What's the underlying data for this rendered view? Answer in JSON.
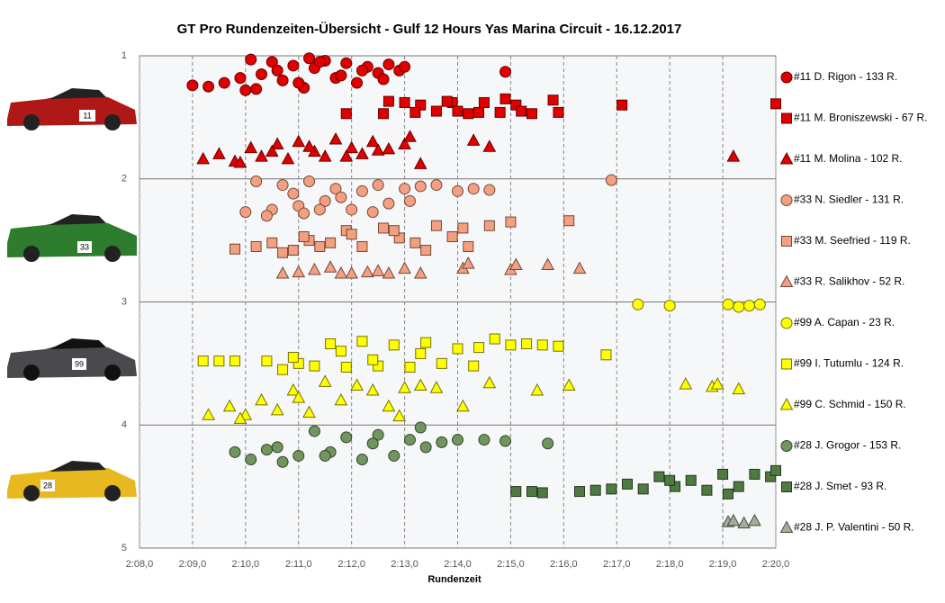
{
  "chart_data": {
    "type": "scatter",
    "title": "GT Pro Rundenzeiten-Übersicht  - Gulf 12 Hours Yas Marina  Circuit  - 16.12.2017",
    "x_label": "Rundenzeit",
    "xlim": [
      128,
      140
    ],
    "ylim": [
      1,
      5
    ],
    "y_inverted": true,
    "grid": true,
    "xticks": [
      {
        "value": 128,
        "label": "2:08,0"
      },
      {
        "value": 129,
        "label": "2:09,0"
      },
      {
        "value": 130,
        "label": "2:10,0"
      },
      {
        "value": 131,
        "label": "2:11,0"
      },
      {
        "value": 132,
        "label": "2:12,0"
      },
      {
        "value": 133,
        "label": "2:13,0"
      },
      {
        "value": 134,
        "label": "2:14,0"
      },
      {
        "value": 135,
        "label": "2:15,0"
      },
      {
        "value": 136,
        "label": "2:16,0"
      },
      {
        "value": 137,
        "label": "2:17,0"
      },
      {
        "value": 138,
        "label": "2:18,0"
      },
      {
        "value": 139,
        "label": "2:19,0"
      },
      {
        "value": 140,
        "label": "2:20,0"
      }
    ],
    "yticks": [
      1,
      2,
      3,
      4,
      5
    ],
    "series": [
      {
        "name": "#11 D. Rigon - 133 R.",
        "color": "#e00000",
        "marker": "circle",
        "x": [
          129.0,
          129.3,
          129.6,
          129.9,
          130.1,
          130.3,
          130.5,
          130.7,
          130.9,
          131.1,
          131.3,
          131.5,
          131.7,
          131.9,
          132.1,
          132.3,
          132.5,
          132.7,
          132.9,
          133.0,
          130.2,
          130.6,
          131.0,
          131.4,
          131.8,
          132.2,
          132.6,
          134.9,
          130.0,
          131.2
        ],
        "values": [
          1.24,
          1.25,
          1.22,
          1.18,
          1.03,
          1.15,
          1.05,
          1.2,
          1.08,
          1.26,
          1.1,
          1.04,
          1.18,
          1.06,
          1.22,
          1.09,
          1.14,
          1.07,
          1.12,
          1.09,
          1.27,
          1.12,
          1.22,
          1.05,
          1.16,
          1.12,
          1.19,
          1.13,
          1.28,
          1.02
        ]
      },
      {
        "name": "#11 M. Broniszewski - 67 R.",
        "color": "#e00000",
        "marker": "square",
        "x": [
          131.9,
          132.7,
          133.0,
          133.3,
          133.6,
          133.9,
          134.2,
          134.5,
          134.8,
          135.1,
          135.4,
          135.8,
          133.2,
          133.8,
          134.4,
          134.9,
          135.2,
          135.9,
          137.1,
          140.0,
          132.6,
          134.0
        ],
        "values": [
          1.47,
          1.37,
          1.38,
          1.4,
          1.45,
          1.38,
          1.47,
          1.38,
          1.46,
          1.4,
          1.47,
          1.36,
          1.46,
          1.37,
          1.46,
          1.35,
          1.45,
          1.46,
          1.4,
          1.39,
          1.47,
          1.45
        ]
      },
      {
        "name": "#11 M. Molina - 102 R.",
        "color": "#e00000",
        "marker": "triangle",
        "x": [
          129.2,
          129.5,
          129.8,
          130.1,
          130.3,
          130.6,
          130.8,
          131.0,
          131.3,
          131.5,
          131.7,
          132.0,
          132.2,
          132.4,
          132.7,
          133.0,
          133.3,
          129.9,
          130.5,
          131.2,
          131.9,
          132.5,
          134.3,
          134.6,
          139.2,
          133.1
        ],
        "values": [
          1.84,
          1.8,
          1.86,
          1.75,
          1.82,
          1.72,
          1.84,
          1.7,
          1.78,
          1.82,
          1.68,
          1.75,
          1.8,
          1.7,
          1.76,
          1.72,
          1.88,
          1.87,
          1.78,
          1.74,
          1.82,
          1.77,
          1.69,
          1.74,
          1.82,
          1.66
        ]
      },
      {
        "name": "#33 N. Siedler - 131 R.",
        "color": "#f4a080",
        "marker": "circle",
        "x": [
          130.0,
          130.2,
          130.5,
          130.7,
          131.0,
          131.2,
          131.5,
          131.7,
          132.0,
          132.2,
          132.5,
          132.7,
          133.0,
          133.3,
          133.6,
          134.0,
          134.3,
          134.6,
          136.9,
          130.4,
          131.1,
          131.8,
          132.4,
          133.1,
          130.9,
          131.4
        ],
        "values": [
          2.27,
          2.02,
          2.25,
          2.05,
          2.22,
          2.02,
          2.18,
          2.08,
          2.25,
          2.1,
          2.05,
          2.2,
          2.08,
          2.06,
          2.05,
          2.1,
          2.08,
          2.09,
          2.01,
          2.3,
          2.28,
          2.15,
          2.27,
          2.18,
          2.12,
          2.25
        ]
      },
      {
        "name": "#33 M. Seefried - 119 R.",
        "color": "#f4a080",
        "marker": "square",
        "x": [
          129.8,
          130.2,
          130.5,
          130.9,
          131.2,
          131.6,
          131.9,
          132.2,
          132.6,
          132.9,
          133.2,
          133.6,
          133.9,
          134.2,
          134.6,
          135.0,
          136.1,
          130.7,
          131.4,
          132.0,
          132.8,
          133.4,
          134.1,
          131.1
        ],
        "values": [
          2.57,
          2.55,
          2.52,
          2.58,
          2.5,
          2.52,
          2.42,
          2.55,
          2.4,
          2.48,
          2.52,
          2.38,
          2.47,
          2.55,
          2.38,
          2.35,
          2.34,
          2.6,
          2.55,
          2.45,
          2.42,
          2.58,
          2.4,
          2.47
        ]
      },
      {
        "name": "#33 R. Salikhov - 52 R.",
        "color": "#f4a080",
        "marker": "triangle",
        "x": [
          130.7,
          131.0,
          131.3,
          131.6,
          132.0,
          132.3,
          132.7,
          133.0,
          133.3,
          134.1,
          134.2,
          135.0,
          135.1,
          135.7,
          136.3,
          131.8,
          132.5
        ],
        "values": [
          2.77,
          2.76,
          2.74,
          2.72,
          2.77,
          2.76,
          2.77,
          2.73,
          2.77,
          2.73,
          2.69,
          2.74,
          2.7,
          2.7,
          2.73,
          2.77,
          2.75
        ]
      },
      {
        "name": "#99 A. Capan - 23 R.",
        "color": "#ffff00",
        "marker": "circle",
        "x": [
          137.4,
          138.0,
          139.1,
          139.3,
          139.5,
          139.7
        ],
        "values": [
          3.02,
          3.03,
          3.02,
          3.04,
          3.03,
          3.02
        ]
      },
      {
        "name": "#99 I. Tutumlu - 124 R.",
        "color": "#ffff00",
        "marker": "square",
        "x": [
          129.2,
          129.5,
          129.8,
          130.4,
          130.7,
          131.0,
          131.3,
          131.6,
          131.9,
          132.2,
          132.5,
          132.8,
          133.1,
          133.4,
          133.7,
          134.0,
          134.3,
          134.7,
          135.0,
          135.3,
          135.6,
          135.9,
          136.8,
          130.9,
          131.8,
          132.4,
          133.3,
          134.4
        ],
        "values": [
          3.48,
          3.48,
          3.48,
          3.48,
          3.55,
          3.5,
          3.52,
          3.34,
          3.53,
          3.32,
          3.52,
          3.35,
          3.53,
          3.33,
          3.5,
          3.38,
          3.52,
          3.3,
          3.35,
          3.34,
          3.35,
          3.36,
          3.43,
          3.45,
          3.4,
          3.47,
          3.42,
          3.37
        ]
      },
      {
        "name": "#99 C. Schmid - 150 R.",
        "color": "#ffff00",
        "marker": "triangle",
        "x": [
          129.3,
          129.7,
          130.0,
          130.3,
          130.6,
          130.9,
          131.2,
          131.5,
          131.8,
          132.1,
          132.4,
          132.7,
          133.0,
          133.3,
          133.6,
          134.1,
          134.6,
          135.5,
          136.1,
          138.3,
          138.8,
          138.9,
          139.3,
          129.9,
          131.0,
          132.9
        ],
        "values": [
          3.92,
          3.85,
          3.92,
          3.8,
          3.88,
          3.72,
          3.9,
          3.65,
          3.8,
          3.68,
          3.72,
          3.85,
          3.7,
          3.68,
          3.7,
          3.85,
          3.66,
          3.72,
          3.68,
          3.67,
          3.69,
          3.67,
          3.71,
          3.95,
          3.78,
          3.93
        ]
      },
      {
        "name": "#28 J. Grogor - 153 R.",
        "color": "#70955e",
        "marker": "circle",
        "x": [
          129.8,
          130.1,
          130.4,
          130.7,
          131.0,
          131.3,
          131.6,
          131.9,
          132.2,
          132.5,
          132.8,
          133.1,
          133.4,
          133.7,
          134.0,
          134.5,
          134.9,
          135.7,
          130.6,
          131.5,
          132.4,
          133.3
        ],
        "values": [
          4.22,
          4.28,
          4.2,
          4.3,
          4.25,
          4.05,
          4.22,
          4.1,
          4.28,
          4.08,
          4.25,
          4.12,
          4.18,
          4.14,
          4.12,
          4.12,
          4.13,
          4.15,
          4.18,
          4.25,
          4.15,
          4.02
        ]
      },
      {
        "name": "#28 J. Smet - 93 R.",
        "color": "#4f7a42",
        "marker": "square",
        "x": [
          135.1,
          135.4,
          135.6,
          136.3,
          136.6,
          136.9,
          137.2,
          137.5,
          137.8,
          138.1,
          138.4,
          138.7,
          139.0,
          139.3,
          139.6,
          139.9,
          140.0,
          138.0,
          139.1
        ],
        "values": [
          4.54,
          4.54,
          4.55,
          4.54,
          4.53,
          4.52,
          4.48,
          4.52,
          4.42,
          4.5,
          4.45,
          4.53,
          4.4,
          4.5,
          4.4,
          4.42,
          4.37,
          4.45,
          4.56
        ]
      },
      {
        "name": "#28 J. P. Valentini - 50 R.",
        "color": "#a3ad98",
        "marker": "triangle",
        "x": [
          139.1,
          139.2,
          139.4,
          139.6
        ],
        "values": [
          4.79,
          4.78,
          4.8,
          4.78
        ]
      }
    ]
  }
}
